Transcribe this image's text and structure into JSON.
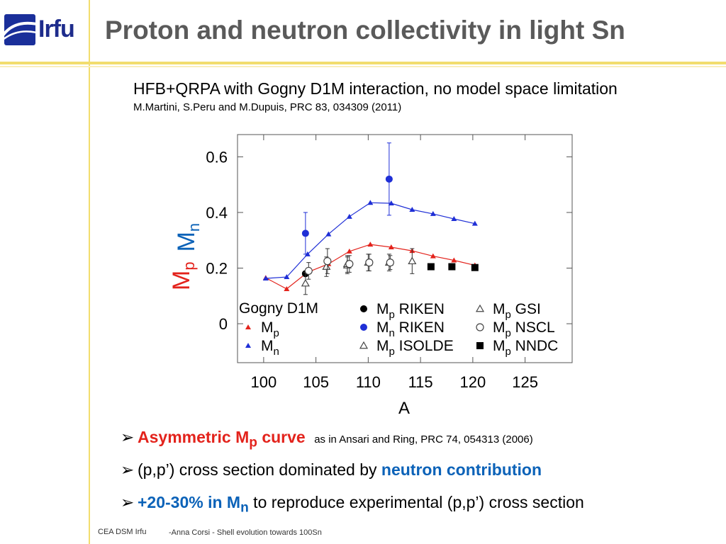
{
  "header": {
    "logo_text": "Irfu",
    "title": "Proton and neutron collectivity in light Sn"
  },
  "intro": {
    "subtitle": "HFB+QRPA with Gogny D1M interaction, no model space limitation",
    "reference": "M.Martini, S.Peru and M.Dupuis, PRC 83, 034309 (2011)"
  },
  "chart_data": {
    "type": "scatter",
    "xlabel": "A",
    "ylabel_parts": [
      {
        "text": "M",
        "sub": "p",
        "color": "#e3231c"
      },
      {
        "text": "M",
        "sub": "n",
        "color": "#0b62b8"
      }
    ],
    "xlim": [
      97.5,
      129.5
    ],
    "ylim": [
      -0.14,
      0.68
    ],
    "xticks": [
      100,
      105,
      110,
      115,
      120,
      125
    ],
    "xtick_labels": [
      "100",
      "105",
      "110",
      "115",
      "120",
      "125"
    ],
    "yticks": [
      0,
      0.2,
      0.4,
      0.6
    ],
    "ytick_labels": [
      "0",
      "0.2",
      "0.4",
      "0.6"
    ],
    "grid": false,
    "legend_title": "Gogny D1M",
    "series": [
      {
        "name": "M",
        "sub": "p",
        "tag": "",
        "marker": "tri-filled",
        "color": "#e3231c",
        "line": true,
        "points": [
          [
            100.2,
            0.165
          ],
          [
            102.2,
            0.125
          ],
          [
            104.2,
            0.185
          ],
          [
            106.2,
            0.215
          ],
          [
            108.2,
            0.26
          ],
          [
            110.2,
            0.285
          ],
          [
            112.2,
            0.275
          ],
          [
            114.2,
            0.262
          ],
          [
            116.2,
            0.243
          ],
          [
            118.2,
            0.228
          ],
          [
            120.2,
            0.21
          ]
        ]
      },
      {
        "name": "M",
        "sub": "n",
        "tag": "",
        "marker": "tri-filled",
        "color": "#1f2fd6",
        "line": true,
        "points": [
          [
            100.2,
            0.163
          ],
          [
            102.2,
            0.168
          ],
          [
            104.2,
            0.25
          ],
          [
            106.2,
            0.322
          ],
          [
            108.2,
            0.385
          ],
          [
            110.2,
            0.435
          ],
          [
            112.2,
            0.433
          ],
          [
            114.2,
            0.41
          ],
          [
            116.2,
            0.395
          ],
          [
            118.2,
            0.377
          ],
          [
            120.2,
            0.36
          ]
        ]
      },
      {
        "name": "M",
        "sub": "p",
        "tag": "RIKEN",
        "marker": "circle-filled",
        "color": "#000000",
        "line": false,
        "points": [
          [
            104,
            0.18
          ]
        ],
        "errors": [
          0
        ]
      },
      {
        "name": "M",
        "sub": "n",
        "tag": "RIKEN",
        "marker": "circle-filled",
        "color": "#1f2fd6",
        "line": false,
        "points": [
          [
            104,
            0.325
          ],
          [
            112,
            0.52
          ]
        ],
        "errors": [
          0.075,
          0.13
        ]
      },
      {
        "name": "M",
        "sub": "p",
        "tag": "ISOLDE",
        "marker": "tri-open",
        "color": "#444444",
        "line": false,
        "points": [
          [
            104,
            0.145
          ],
          [
            106,
            0.205
          ],
          [
            108,
            0.21
          ]
        ],
        "errors": [
          0.04,
          0.035,
          0.03
        ]
      },
      {
        "name": "M",
        "sub": "p",
        "tag": "GSI",
        "marker": "tri-open",
        "color": "#444444",
        "line": false,
        "points": [
          [
            108,
            0.215
          ],
          [
            110,
            0.22
          ],
          [
            112,
            0.22
          ],
          [
            114.2,
            0.225
          ]
        ],
        "errors": [
          0.03,
          0.03,
          0.03,
          0.045
        ]
      },
      {
        "name": "M",
        "sub": "p",
        "tag": "NSCL",
        "marker": "circle-open",
        "color": "#444444",
        "line": false,
        "points": [
          [
            104.3,
            0.19
          ],
          [
            106.1,
            0.225
          ],
          [
            108.2,
            0.215
          ],
          [
            110.1,
            0.22
          ],
          [
            112.1,
            0.22
          ]
        ],
        "errors": [
          0.03,
          0.045,
          0.03,
          0.03,
          0.025
        ]
      },
      {
        "name": "M",
        "sub": "p",
        "tag": "NNDC",
        "marker": "square-filled",
        "color": "#000000",
        "line": false,
        "points": [
          [
            116,
            0.205
          ],
          [
            118,
            0.205
          ],
          [
            120.2,
            0.202
          ]
        ],
        "errors": [
          0,
          0,
          0
        ]
      }
    ]
  },
  "bullets": [
    {
      "arrow": "➢",
      "parts": [
        {
          "text": "Asymmetric M",
          "style": "red"
        },
        {
          "text": "p",
          "style": "red",
          "sub": true
        },
        {
          "text": " curve",
          "style": "red"
        },
        {
          "text": "   as in Ansari and Ring, PRC 74, 054313 (2006)",
          "style": "small"
        }
      ]
    },
    {
      "arrow": "➢",
      "parts": [
        {
          "text": "(p,p’) cross section dominated by ",
          "style": "plain"
        },
        {
          "text": "neutron contribution",
          "style": "blue"
        }
      ]
    },
    {
      "arrow": "➢",
      "parts": [
        {
          "text": "+20-30% in M",
          "style": "blue"
        },
        {
          "text": "n",
          "style": "blue",
          "sub": true
        },
        {
          "text": " to reproduce experimental (p,p’) cross section",
          "style": "plain"
        }
      ]
    }
  ],
  "footer": {
    "org": "CEA DSM Irfu",
    "author": "-Anna Corsi -   Shell evolution towards 100Sn"
  },
  "colors": {
    "accent_rule": "#f2dd6e",
    "title_gray": "#5a5a5a",
    "red": "#e3231c",
    "blue": "#0b62b8"
  },
  "icons": {
    "logo": "irfu-logo-icon",
    "bullet": "arrow-bullet-icon"
  }
}
